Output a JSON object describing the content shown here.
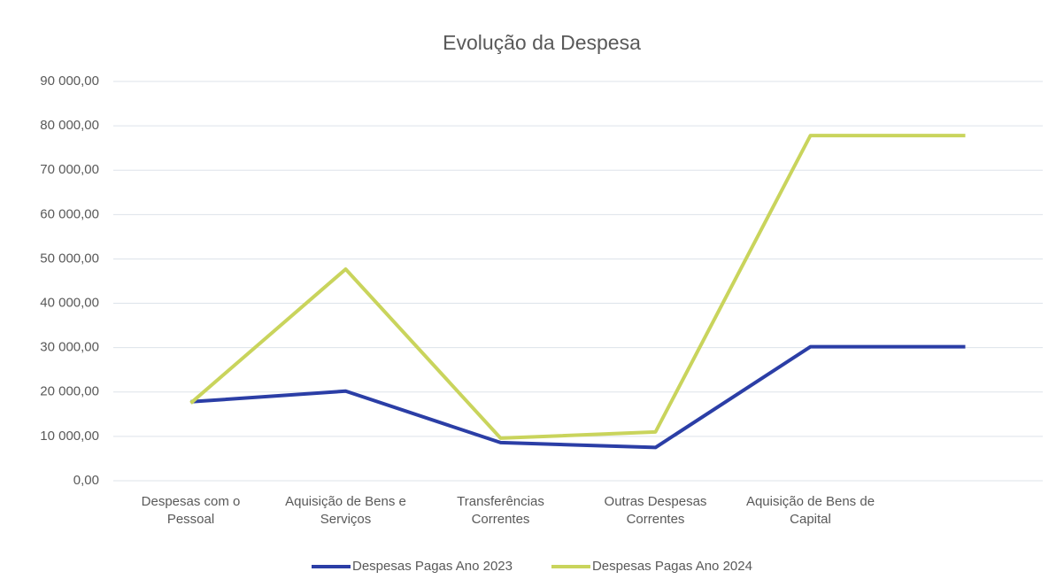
{
  "chart_data": {
    "type": "line",
    "title": "Evolução da Despesa",
    "categories": [
      "Despesas com o Pessoal",
      "Aquisição de Bens e Serviços",
      "Transferências Correntes",
      "Outras Despesas Correntes",
      "Aquisição de Bens de Capital",
      null
    ],
    "series": [
      {
        "name": "Despesas Pagas Ano 2023",
        "color": "#2b3ea6",
        "values": [
          17800,
          20200,
          8600,
          7500,
          30200,
          30200
        ]
      },
      {
        "name": "Despesas Pagas Ano 2024",
        "color": "#c9d45c",
        "values": [
          17500,
          47700,
          9600,
          11000,
          77800,
          77800
        ]
      }
    ],
    "ylim": [
      0,
      90000
    ],
    "yticks": [
      {
        "value": 0,
        "label": "0,00"
      },
      {
        "value": 10000,
        "label": "10 000,00"
      },
      {
        "value": 20000,
        "label": "20 000,00"
      },
      {
        "value": 30000,
        "label": "30 000,00"
      },
      {
        "value": 40000,
        "label": "40 000,00"
      },
      {
        "value": 50000,
        "label": "50 000,00"
      },
      {
        "value": 60000,
        "label": "60 000,00"
      },
      {
        "value": 70000,
        "label": "70 000,00"
      },
      {
        "value": 80000,
        "label": "80 000,00"
      },
      {
        "value": 90000,
        "label": "90 000,00"
      }
    ],
    "grid": true,
    "legend": "bottom"
  }
}
